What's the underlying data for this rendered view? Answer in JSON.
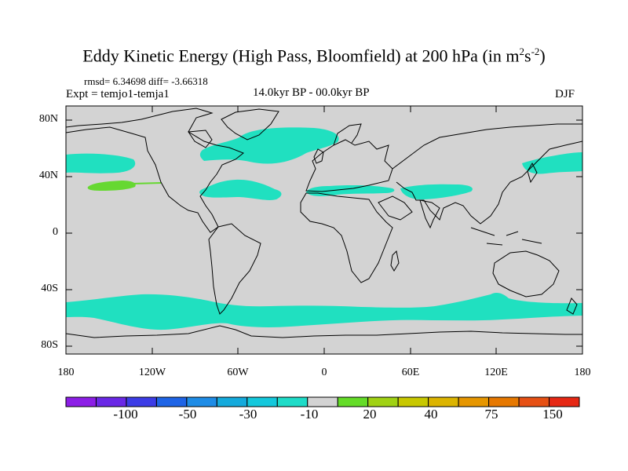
{
  "figure": {
    "title_main": "Eddy Kinetic Energy (High Pass, Bloomfield) at 200 hPa (in m",
    "title_sup1": "2",
    "title_s": "s",
    "title_sup2": "-2",
    "title_close": ")",
    "stats": "rmsd= 6.34698 diff= -3.66318",
    "experiment": "Expt = temjo1-temja1",
    "period": "14.0kyr BP - 00.0kyr BP",
    "season": "DJF"
  },
  "colors": {
    "background": "#d3d3d3",
    "cyan_band": "#20e0c0",
    "green_patch": "#66d831",
    "coast": "#000000"
  },
  "axes": {
    "lat_labels": [
      "80N",
      "40N",
      "0",
      "40S",
      "80S"
    ],
    "lon_labels": [
      "180",
      "120W",
      "60W",
      "0",
      "60E",
      "120E",
      "180"
    ]
  },
  "colorbar": {
    "colors": [
      "#8c1ee6",
      "#6a28e6",
      "#3c3ce6",
      "#1e64e6",
      "#1e8ce6",
      "#14aadc",
      "#14c8dc",
      "#1edcc8",
      "#d3d3d3",
      "#64dc28",
      "#a0d214",
      "#c8c800",
      "#dcb400",
      "#e69600",
      "#e67800",
      "#e65014",
      "#e62814"
    ],
    "labels": [
      "-100",
      "-50",
      "-30",
      "-10",
      "20",
      "40",
      "75",
      "150"
    ]
  }
}
